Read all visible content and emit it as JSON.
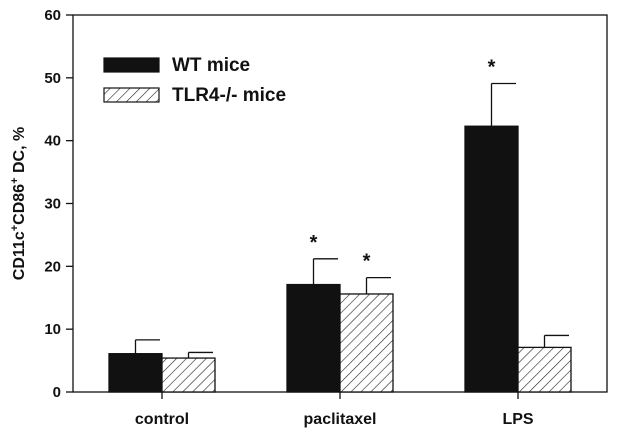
{
  "chart_data": {
    "type": "bar",
    "categories": [
      "control",
      "paclitaxel",
      "LPS"
    ],
    "series": [
      {
        "name": "WT mice",
        "values": [
          6.1,
          17.1,
          42.3
        ],
        "errors": [
          2.2,
          4.1,
          6.8
        ],
        "significance": [
          "",
          "*",
          "*"
        ],
        "style": "solid",
        "color": "#111111"
      },
      {
        "name": "TLR4-/- mice",
        "values": [
          5.4,
          15.6,
          7.1
        ],
        "errors": [
          0.9,
          2.6,
          1.9
        ],
        "significance": [
          "",
          "*",
          ""
        ],
        "style": "hatched",
        "color": "#ffffff"
      }
    ],
    "ylim": [
      0,
      60
    ],
    "yticks": [
      0,
      10,
      20,
      30,
      40,
      50,
      60
    ],
    "ylabel": "CD11c+CD86+ DC, %",
    "ylabel_parts": [
      "CD11c",
      "+",
      "CD86",
      "+",
      " DC, %"
    ],
    "xlabel": "",
    "title": "",
    "legend_position": "top-left",
    "grid": false
  }
}
